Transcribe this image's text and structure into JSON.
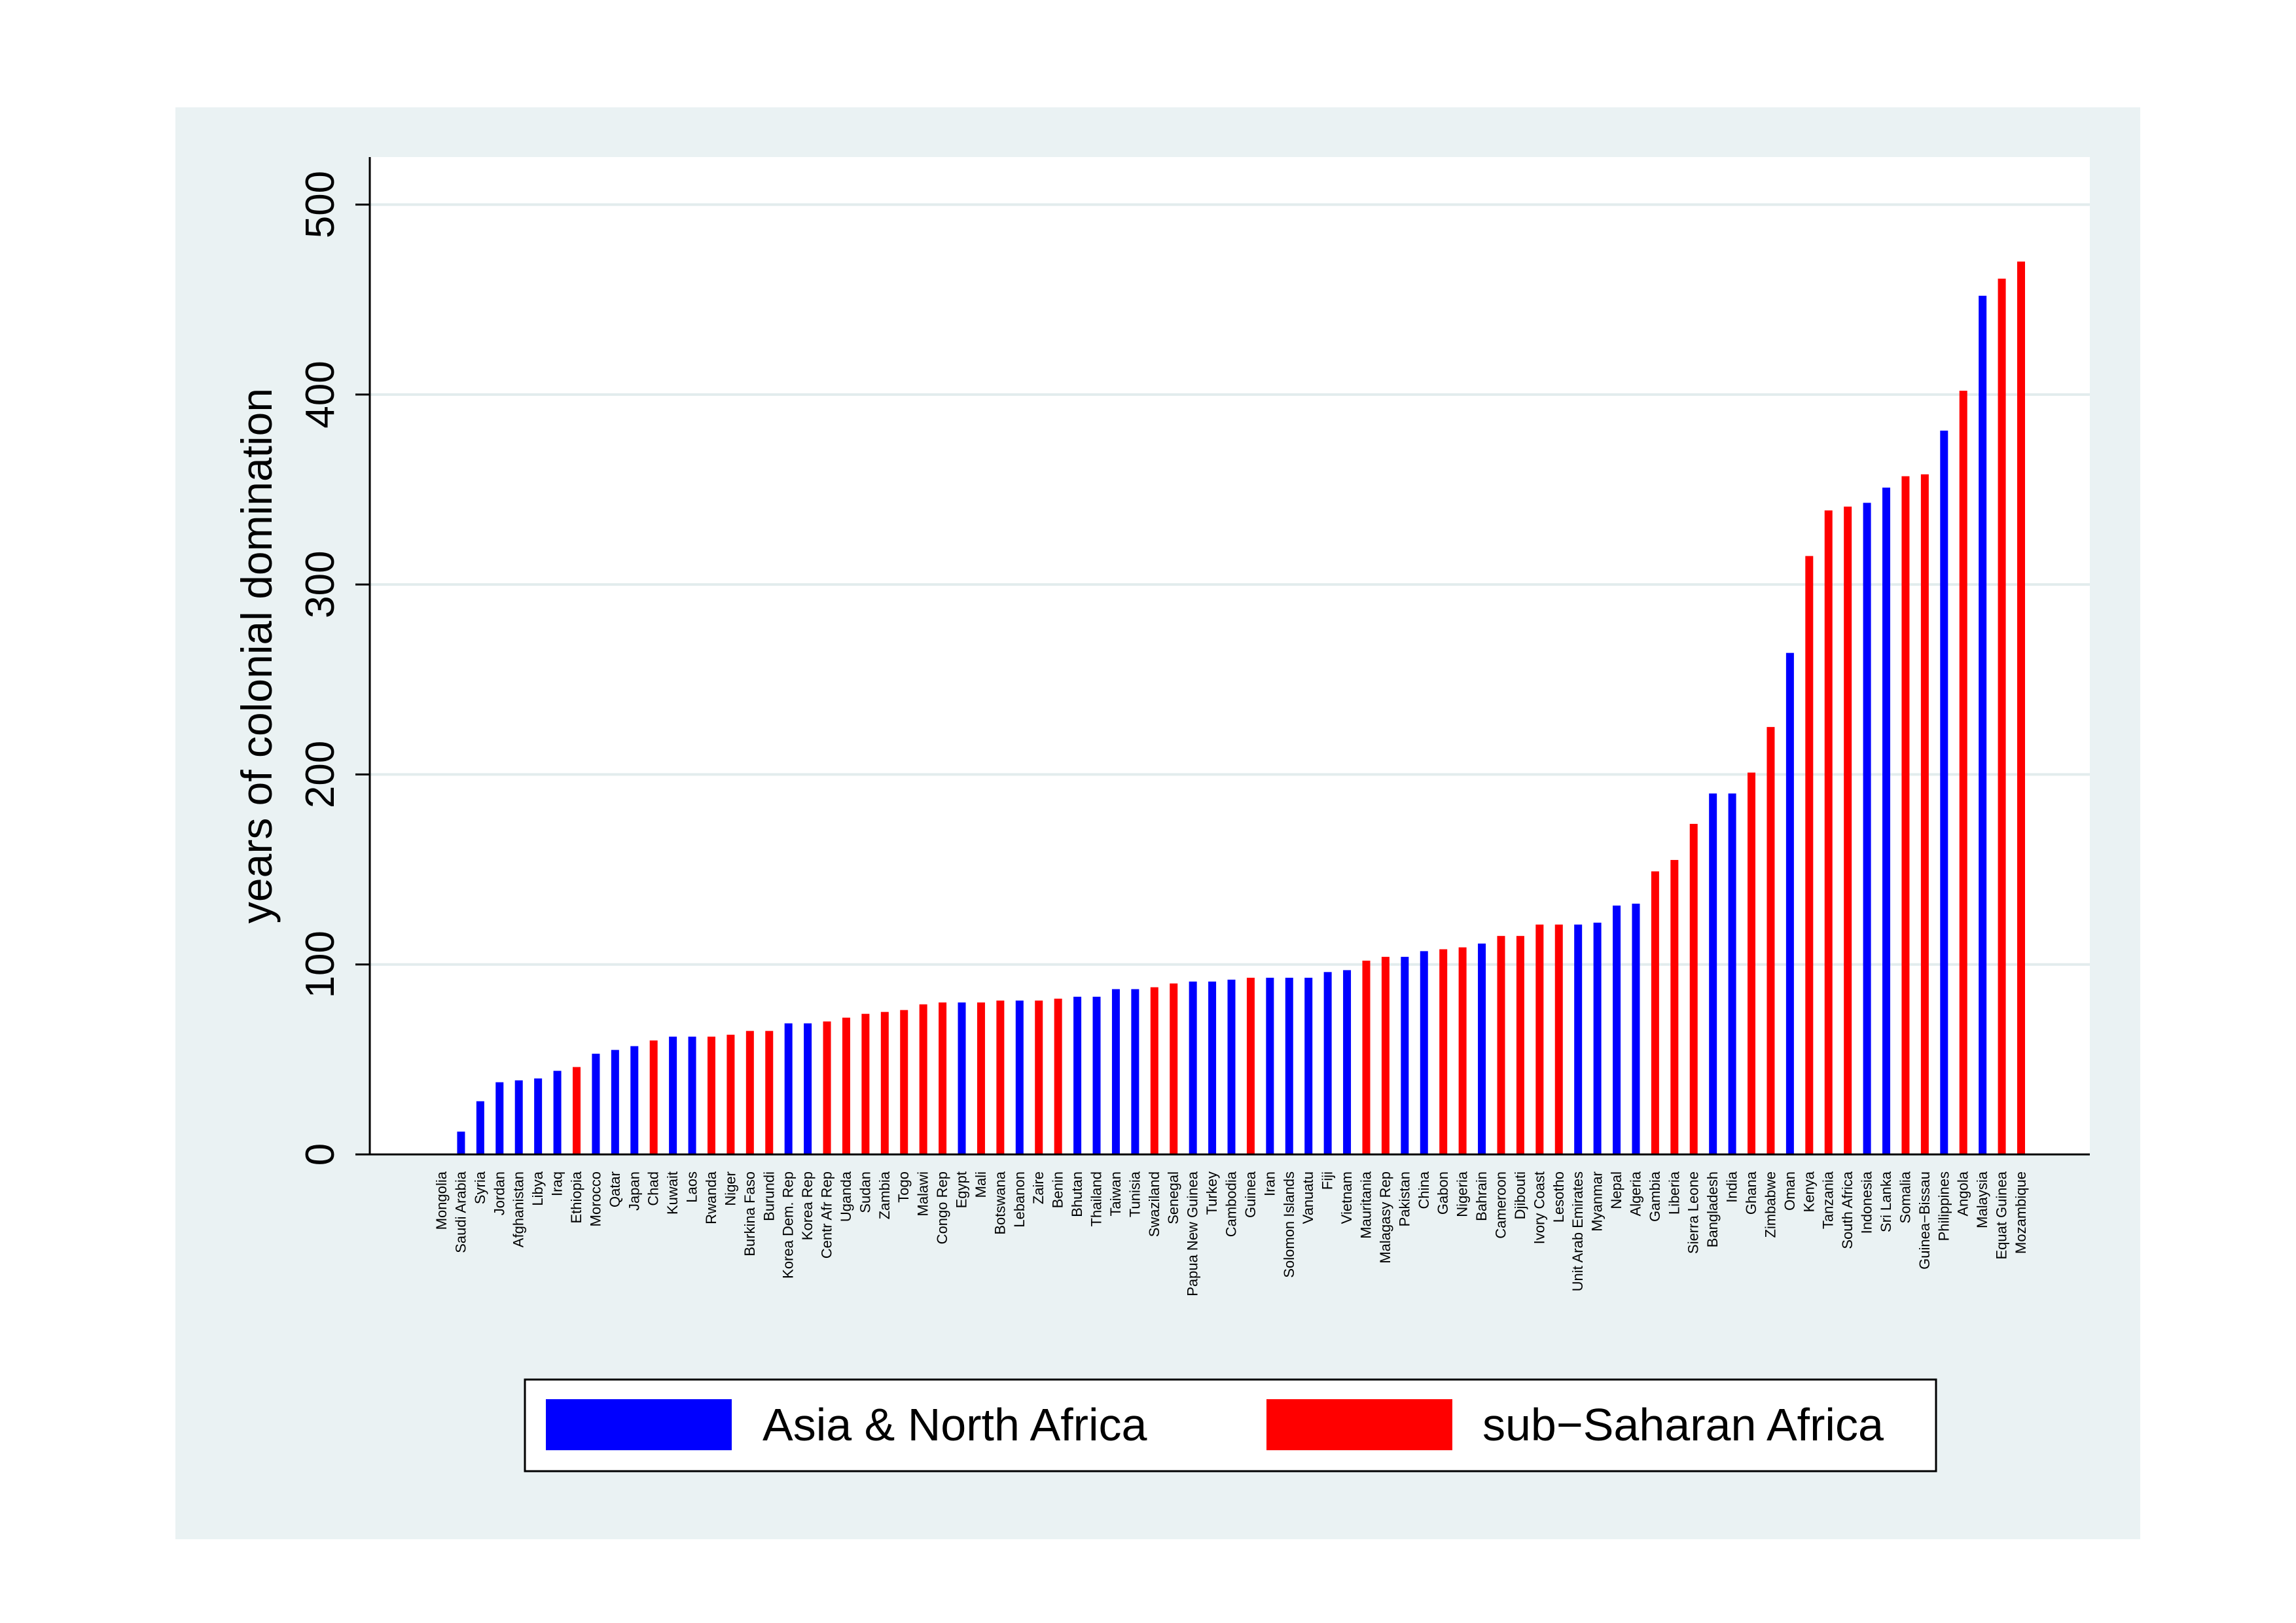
{
  "chart_data": {
    "type": "bar",
    "title": "",
    "xlabel": "",
    "ylabel": "years of colonial domination",
    "ylim": [
      0,
      525
    ],
    "yticks": [
      0,
      100,
      200,
      300,
      400,
      500
    ],
    "grid": true,
    "legend_position": "bottom",
    "colors": {
      "Asia & North Africa": "#0000ff",
      "sub−Saharan Africa": "#ff0000"
    },
    "legend": [
      {
        "label": "Asia & North Africa",
        "color": "#0000ff"
      },
      {
        "label": "sub−Saharan Africa",
        "color": "#ff0000"
      }
    ],
    "bars": [
      {
        "category": "Mongolia",
        "value": 0,
        "group": "Asia & North Africa"
      },
      {
        "category": "Saudi Arabia",
        "value": 12,
        "group": "Asia & North Africa"
      },
      {
        "category": "Syria",
        "value": 28,
        "group": "Asia & North Africa"
      },
      {
        "category": "Jordan",
        "value": 38,
        "group": "Asia & North Africa"
      },
      {
        "category": "Afghanistan",
        "value": 39,
        "group": "Asia & North Africa"
      },
      {
        "category": "Libya",
        "value": 40,
        "group": "Asia & North Africa"
      },
      {
        "category": "Iraq",
        "value": 44,
        "group": "Asia & North Africa"
      },
      {
        "category": "Ethiopia",
        "value": 46,
        "group": "sub−Saharan Africa"
      },
      {
        "category": "Morocco",
        "value": 53,
        "group": "Asia & North Africa"
      },
      {
        "category": "Qatar",
        "value": 55,
        "group": "Asia & North Africa"
      },
      {
        "category": "Japan",
        "value": 57,
        "group": "Asia & North Africa"
      },
      {
        "category": "Chad",
        "value": 60,
        "group": "sub−Saharan Africa"
      },
      {
        "category": "Kuwait",
        "value": 62,
        "group": "Asia & North Africa"
      },
      {
        "category": "Laos",
        "value": 62,
        "group": "Asia & North Africa"
      },
      {
        "category": "Rwanda",
        "value": 62,
        "group": "sub−Saharan Africa"
      },
      {
        "category": "Niger",
        "value": 63,
        "group": "sub−Saharan Africa"
      },
      {
        "category": "Burkina Faso",
        "value": 65,
        "group": "sub−Saharan Africa"
      },
      {
        "category": "Burundi",
        "value": 65,
        "group": "sub−Saharan Africa"
      },
      {
        "category": "Korea Dem. Rep",
        "value": 69,
        "group": "Asia & North Africa"
      },
      {
        "category": "Korea Rep",
        "value": 69,
        "group": "Asia & North Africa"
      },
      {
        "category": "Centr Afr Rep",
        "value": 70,
        "group": "sub−Saharan Africa"
      },
      {
        "category": "Uganda",
        "value": 72,
        "group": "sub−Saharan Africa"
      },
      {
        "category": "Sudan",
        "value": 74,
        "group": "sub−Saharan Africa"
      },
      {
        "category": "Zambia",
        "value": 75,
        "group": "sub−Saharan Africa"
      },
      {
        "category": "Togo",
        "value": 76,
        "group": "sub−Saharan Africa"
      },
      {
        "category": "Malawi",
        "value": 79,
        "group": "sub−Saharan Africa"
      },
      {
        "category": "Congo Rep",
        "value": 80,
        "group": "sub−Saharan Africa"
      },
      {
        "category": "Egypt",
        "value": 80,
        "group": "Asia & North Africa"
      },
      {
        "category": "Mali",
        "value": 80,
        "group": "sub−Saharan Africa"
      },
      {
        "category": "Botswana",
        "value": 81,
        "group": "sub−Saharan Africa"
      },
      {
        "category": "Lebanon",
        "value": 81,
        "group": "Asia & North Africa"
      },
      {
        "category": "Zaire",
        "value": 81,
        "group": "sub−Saharan Africa"
      },
      {
        "category": "Benin",
        "value": 82,
        "group": "sub−Saharan Africa"
      },
      {
        "category": "Bhutan",
        "value": 83,
        "group": "Asia & North Africa"
      },
      {
        "category": "Thailand",
        "value": 83,
        "group": "Asia & North Africa"
      },
      {
        "category": "Taiwan",
        "value": 87,
        "group": "Asia & North Africa"
      },
      {
        "category": "Tunisia",
        "value": 87,
        "group": "Asia & North Africa"
      },
      {
        "category": "Swaziland",
        "value": 88,
        "group": "sub−Saharan Africa"
      },
      {
        "category": "Senegal",
        "value": 90,
        "group": "sub−Saharan Africa"
      },
      {
        "category": "Papua New Guinea",
        "value": 91,
        "group": "Asia & North Africa"
      },
      {
        "category": "Turkey",
        "value": 91,
        "group": "Asia & North Africa"
      },
      {
        "category": "Cambodia",
        "value": 92,
        "group": "Asia & North Africa"
      },
      {
        "category": "Guinea",
        "value": 93,
        "group": "sub−Saharan Africa"
      },
      {
        "category": "Iran",
        "value": 93,
        "group": "Asia & North Africa"
      },
      {
        "category": "Solomon Islands",
        "value": 93,
        "group": "Asia & North Africa"
      },
      {
        "category": "Vanuatu",
        "value": 93,
        "group": "Asia & North Africa"
      },
      {
        "category": "Fiji",
        "value": 96,
        "group": "Asia & North Africa"
      },
      {
        "category": "Vietnam",
        "value": 97,
        "group": "Asia & North Africa"
      },
      {
        "category": "Mauritania",
        "value": 102,
        "group": "sub−Saharan Africa"
      },
      {
        "category": "Malagasy Rep",
        "value": 104,
        "group": "sub−Saharan Africa"
      },
      {
        "category": "Pakistan",
        "value": 104,
        "group": "Asia & North Africa"
      },
      {
        "category": "China",
        "value": 107,
        "group": "Asia & North Africa"
      },
      {
        "category": "Gabon",
        "value": 108,
        "group": "sub−Saharan Africa"
      },
      {
        "category": "Nigeria",
        "value": 109,
        "group": "sub−Saharan Africa"
      },
      {
        "category": "Bahrain",
        "value": 111,
        "group": "Asia & North Africa"
      },
      {
        "category": "Cameroon",
        "value": 115,
        "group": "sub−Saharan Africa"
      },
      {
        "category": "Djibouti",
        "value": 115,
        "group": "sub−Saharan Africa"
      },
      {
        "category": "Ivory Coast",
        "value": 121,
        "group": "sub−Saharan Africa"
      },
      {
        "category": "Lesotho",
        "value": 121,
        "group": "sub−Saharan Africa"
      },
      {
        "category": "Unit Arab Emirates",
        "value": 121,
        "group": "Asia & North Africa"
      },
      {
        "category": "Myanmar",
        "value": 122,
        "group": "Asia & North Africa"
      },
      {
        "category": "Nepal",
        "value": 131,
        "group": "Asia & North Africa"
      },
      {
        "category": "Algeria",
        "value": 132,
        "group": "Asia & North Africa"
      },
      {
        "category": "Gambia",
        "value": 149,
        "group": "sub−Saharan Africa"
      },
      {
        "category": "Liberia",
        "value": 155,
        "group": "sub−Saharan Africa"
      },
      {
        "category": "Sierra Leone",
        "value": 174,
        "group": "sub−Saharan Africa"
      },
      {
        "category": "Bangladesh",
        "value": 190,
        "group": "Asia & North Africa"
      },
      {
        "category": "India",
        "value": 190,
        "group": "Asia & North Africa"
      },
      {
        "category": "Ghana",
        "value": 201,
        "group": "sub−Saharan Africa"
      },
      {
        "category": "Zimbabwe",
        "value": 225,
        "group": "sub−Saharan Africa"
      },
      {
        "category": "Oman",
        "value": 264,
        "group": "Asia & North Africa"
      },
      {
        "category": "Kenya",
        "value": 315,
        "group": "sub−Saharan Africa"
      },
      {
        "category": "Tanzania",
        "value": 339,
        "group": "sub−Saharan Africa"
      },
      {
        "category": "South Africa",
        "value": 341,
        "group": "sub−Saharan Africa"
      },
      {
        "category": "Indonesia",
        "value": 343,
        "group": "Asia & North Africa"
      },
      {
        "category": "Sri Lanka",
        "value": 351,
        "group": "Asia & North Africa"
      },
      {
        "category": "Somalia",
        "value": 357,
        "group": "sub−Saharan Africa"
      },
      {
        "category": "Guinea−Bissau",
        "value": 358,
        "group": "sub−Saharan Africa"
      },
      {
        "category": "Philippines",
        "value": 381,
        "group": "Asia & North Africa"
      },
      {
        "category": "Angola",
        "value": 402,
        "group": "sub−Saharan Africa"
      },
      {
        "category": "Malaysia",
        "value": 452,
        "group": "Asia & North Africa"
      },
      {
        "category": "Equat Guinea",
        "value": 461,
        "group": "sub−Saharan Africa"
      },
      {
        "category": "Mozambique",
        "value": 470,
        "group": "sub−Saharan Africa"
      }
    ]
  }
}
